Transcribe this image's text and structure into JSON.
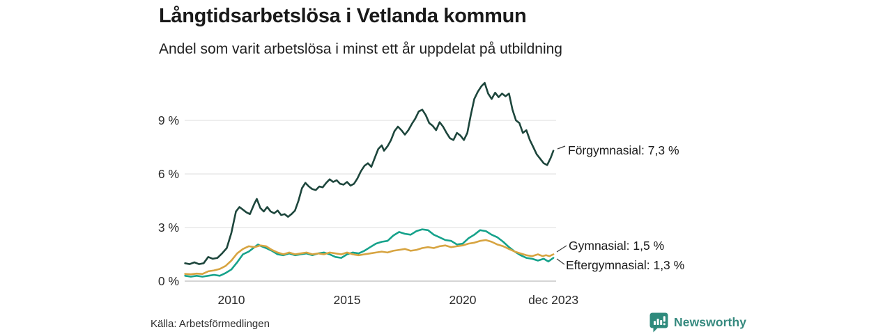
{
  "header": {
    "title": "Långtidsarbetslösa i Vetlanda kommun",
    "subtitle": "Andel som varit arbetslösa i minst ett år uppdelat på utbildning"
  },
  "footer": {
    "source": "Källa: Arbetsförmedlingen",
    "brand": "Newsworthy"
  },
  "colors": {
    "forgymnasial": "#1d463c",
    "gymnasial": "#d7a441",
    "eftergymnasial": "#16a28b",
    "grid": "#e3e3e3",
    "axis": "#c7c7c7",
    "connector": "#3a3a3a",
    "brand": "#35897e",
    "brand_icon": "#2e8a7c"
  },
  "chart_data": {
    "type": "line",
    "title": "Långtidsarbetslösa i Vetlanda kommun",
    "subtitle": "Andel som varit arbetslösa i minst ett år uppdelat på utbildning",
    "grid": true,
    "legend_position": "right-end-labels",
    "x_axis": {
      "range": [
        2008,
        2024
      ],
      "ticks": [
        {
          "label": "2010",
          "value": 2010
        },
        {
          "label": "2015",
          "value": 2015
        },
        {
          "label": "2020",
          "value": 2020
        },
        {
          "label": "dec 2023",
          "value": 2023.92
        }
      ]
    },
    "y_axis": {
      "unit": "%",
      "range": [
        0,
        11.5
      ],
      "tick_values": [
        0,
        3,
        6,
        9
      ],
      "ticks": [
        "0 %",
        "3 %",
        "6 %",
        "9 %"
      ]
    },
    "series": [
      {
        "id": "forgymnasial",
        "name": "Förgymnasial",
        "label": "Förgymnasial: 7,3 %",
        "end_value": 7.3,
        "color": "#1d463c",
        "points": [
          [
            2008.0,
            1.0
          ],
          [
            2008.2,
            0.95
          ],
          [
            2008.4,
            1.05
          ],
          [
            2008.6,
            0.95
          ],
          [
            2008.8,
            1.0
          ],
          [
            2009.0,
            1.35
          ],
          [
            2009.2,
            1.25
          ],
          [
            2009.4,
            1.3
          ],
          [
            2009.6,
            1.55
          ],
          [
            2009.8,
            1.85
          ],
          [
            2010.0,
            2.7
          ],
          [
            2010.2,
            3.9
          ],
          [
            2010.35,
            4.15
          ],
          [
            2010.5,
            4.0
          ],
          [
            2010.65,
            3.85
          ],
          [
            2010.8,
            3.75
          ],
          [
            2011.0,
            4.35
          ],
          [
            2011.1,
            4.6
          ],
          [
            2011.25,
            4.1
          ],
          [
            2011.4,
            3.9
          ],
          [
            2011.55,
            4.15
          ],
          [
            2011.7,
            3.9
          ],
          [
            2011.85,
            3.8
          ],
          [
            2012.0,
            3.95
          ],
          [
            2012.15,
            3.7
          ],
          [
            2012.3,
            3.75
          ],
          [
            2012.45,
            3.6
          ],
          [
            2012.6,
            3.75
          ],
          [
            2012.75,
            3.95
          ],
          [
            2012.9,
            4.5
          ],
          [
            2013.05,
            5.2
          ],
          [
            2013.2,
            5.5
          ],
          [
            2013.35,
            5.3
          ],
          [
            2013.5,
            5.15
          ],
          [
            2013.65,
            5.1
          ],
          [
            2013.8,
            5.3
          ],
          [
            2013.95,
            5.25
          ],
          [
            2014.1,
            5.5
          ],
          [
            2014.25,
            5.7
          ],
          [
            2014.4,
            5.55
          ],
          [
            2014.55,
            5.65
          ],
          [
            2014.7,
            5.45
          ],
          [
            2014.85,
            5.4
          ],
          [
            2015.0,
            5.55
          ],
          [
            2015.15,
            5.35
          ],
          [
            2015.3,
            5.45
          ],
          [
            2015.45,
            5.75
          ],
          [
            2015.6,
            6.15
          ],
          [
            2015.75,
            6.45
          ],
          [
            2015.9,
            6.6
          ],
          [
            2016.05,
            6.4
          ],
          [
            2016.2,
            6.9
          ],
          [
            2016.35,
            7.4
          ],
          [
            2016.5,
            7.6
          ],
          [
            2016.6,
            7.3
          ],
          [
            2016.75,
            7.55
          ],
          [
            2016.9,
            7.9
          ],
          [
            2017.05,
            8.4
          ],
          [
            2017.2,
            8.65
          ],
          [
            2017.35,
            8.45
          ],
          [
            2017.5,
            8.2
          ],
          [
            2017.65,
            8.45
          ],
          [
            2017.8,
            8.8
          ],
          [
            2017.95,
            9.1
          ],
          [
            2018.1,
            9.5
          ],
          [
            2018.25,
            9.6
          ],
          [
            2018.4,
            9.3
          ],
          [
            2018.55,
            8.85
          ],
          [
            2018.7,
            8.7
          ],
          [
            2018.85,
            8.45
          ],
          [
            2019.0,
            8.9
          ],
          [
            2019.15,
            8.65
          ],
          [
            2019.3,
            8.3
          ],
          [
            2019.45,
            8.0
          ],
          [
            2019.6,
            7.9
          ],
          [
            2019.75,
            8.3
          ],
          [
            2019.9,
            8.15
          ],
          [
            2020.05,
            7.9
          ],
          [
            2020.2,
            8.3
          ],
          [
            2020.35,
            9.3
          ],
          [
            2020.5,
            10.2
          ],
          [
            2020.65,
            10.6
          ],
          [
            2020.8,
            10.9
          ],
          [
            2020.95,
            11.1
          ],
          [
            2021.1,
            10.5
          ],
          [
            2021.25,
            10.2
          ],
          [
            2021.4,
            10.55
          ],
          [
            2021.55,
            10.3
          ],
          [
            2021.7,
            10.5
          ],
          [
            2021.85,
            10.35
          ],
          [
            2022.0,
            10.5
          ],
          [
            2022.15,
            9.6
          ],
          [
            2022.3,
            9.0
          ],
          [
            2022.45,
            8.85
          ],
          [
            2022.6,
            8.3
          ],
          [
            2022.75,
            8.45
          ],
          [
            2022.9,
            7.9
          ],
          [
            2023.05,
            7.5
          ],
          [
            2023.2,
            7.1
          ],
          [
            2023.35,
            6.85
          ],
          [
            2023.5,
            6.6
          ],
          [
            2023.65,
            6.5
          ],
          [
            2023.8,
            6.9
          ],
          [
            2023.92,
            7.3
          ]
        ]
      },
      {
        "id": "gymnasial",
        "name": "Gymnasial",
        "label": "Gymnasial: 1,5 %",
        "end_value": 1.5,
        "color": "#d7a441",
        "points": [
          [
            2008.0,
            0.4
          ],
          [
            2008.25,
            0.38
          ],
          [
            2008.5,
            0.42
          ],
          [
            2008.75,
            0.4
          ],
          [
            2009.0,
            0.55
          ],
          [
            2009.25,
            0.6
          ],
          [
            2009.5,
            0.68
          ],
          [
            2009.75,
            0.85
          ],
          [
            2010.0,
            1.15
          ],
          [
            2010.25,
            1.55
          ],
          [
            2010.5,
            1.8
          ],
          [
            2010.75,
            1.95
          ],
          [
            2011.0,
            1.9
          ],
          [
            2011.25,
            2.0
          ],
          [
            2011.5,
            1.95
          ],
          [
            2011.75,
            1.75
          ],
          [
            2012.0,
            1.6
          ],
          [
            2012.25,
            1.5
          ],
          [
            2012.5,
            1.6
          ],
          [
            2012.75,
            1.5
          ],
          [
            2013.0,
            1.55
          ],
          [
            2013.25,
            1.6
          ],
          [
            2013.5,
            1.5
          ],
          [
            2013.75,
            1.55
          ],
          [
            2014.0,
            1.5
          ],
          [
            2014.25,
            1.6
          ],
          [
            2014.5,
            1.55
          ],
          [
            2014.75,
            1.5
          ],
          [
            2015.0,
            1.6
          ],
          [
            2015.25,
            1.5
          ],
          [
            2015.5,
            1.45
          ],
          [
            2015.75,
            1.5
          ],
          [
            2016.0,
            1.55
          ],
          [
            2016.25,
            1.6
          ],
          [
            2016.5,
            1.65
          ],
          [
            2016.75,
            1.6
          ],
          [
            2017.0,
            1.7
          ],
          [
            2017.25,
            1.75
          ],
          [
            2017.5,
            1.8
          ],
          [
            2017.75,
            1.7
          ],
          [
            2018.0,
            1.75
          ],
          [
            2018.25,
            1.85
          ],
          [
            2018.5,
            1.9
          ],
          [
            2018.75,
            1.85
          ],
          [
            2019.0,
            1.95
          ],
          [
            2019.25,
            2.0
          ],
          [
            2019.5,
            1.9
          ],
          [
            2019.75,
            1.95
          ],
          [
            2020.0,
            2.0
          ],
          [
            2020.25,
            2.1
          ],
          [
            2020.5,
            2.15
          ],
          [
            2020.75,
            2.25
          ],
          [
            2021.0,
            2.3
          ],
          [
            2021.25,
            2.2
          ],
          [
            2021.5,
            2.05
          ],
          [
            2021.75,
            1.95
          ],
          [
            2022.0,
            1.8
          ],
          [
            2022.25,
            1.65
          ],
          [
            2022.5,
            1.55
          ],
          [
            2022.75,
            1.45
          ],
          [
            2023.0,
            1.4
          ],
          [
            2023.25,
            1.5
          ],
          [
            2023.45,
            1.4
          ],
          [
            2023.6,
            1.45
          ],
          [
            2023.75,
            1.4
          ],
          [
            2023.92,
            1.5
          ]
        ]
      },
      {
        "id": "eftergymnasial",
        "name": "Eftergymnasial",
        "label": "Eftergymnasial: 1,3 %",
        "end_value": 1.3,
        "color": "#16a28b",
        "points": [
          [
            2008.0,
            0.3
          ],
          [
            2008.25,
            0.25
          ],
          [
            2008.5,
            0.3
          ],
          [
            2008.75,
            0.25
          ],
          [
            2009.0,
            0.3
          ],
          [
            2009.25,
            0.35
          ],
          [
            2009.5,
            0.3
          ],
          [
            2009.75,
            0.45
          ],
          [
            2010.0,
            0.65
          ],
          [
            2010.25,
            1.05
          ],
          [
            2010.5,
            1.5
          ],
          [
            2010.75,
            1.65
          ],
          [
            2011.0,
            1.9
          ],
          [
            2011.15,
            2.05
          ],
          [
            2011.3,
            1.95
          ],
          [
            2011.5,
            1.85
          ],
          [
            2011.75,
            1.7
          ],
          [
            2012.0,
            1.5
          ],
          [
            2012.25,
            1.45
          ],
          [
            2012.5,
            1.55
          ],
          [
            2012.75,
            1.45
          ],
          [
            2013.0,
            1.5
          ],
          [
            2013.25,
            1.55
          ],
          [
            2013.5,
            1.45
          ],
          [
            2013.75,
            1.55
          ],
          [
            2014.0,
            1.6
          ],
          [
            2014.25,
            1.5
          ],
          [
            2014.5,
            1.35
          ],
          [
            2014.75,
            1.3
          ],
          [
            2015.0,
            1.5
          ],
          [
            2015.25,
            1.6
          ],
          [
            2015.5,
            1.55
          ],
          [
            2015.75,
            1.7
          ],
          [
            2016.0,
            1.9
          ],
          [
            2016.25,
            2.1
          ],
          [
            2016.5,
            2.2
          ],
          [
            2016.75,
            2.25
          ],
          [
            2017.0,
            2.55
          ],
          [
            2017.25,
            2.75
          ],
          [
            2017.5,
            2.65
          ],
          [
            2017.75,
            2.6
          ],
          [
            2018.0,
            2.8
          ],
          [
            2018.25,
            2.9
          ],
          [
            2018.5,
            2.85
          ],
          [
            2018.75,
            2.6
          ],
          [
            2019.0,
            2.45
          ],
          [
            2019.25,
            2.3
          ],
          [
            2019.5,
            2.25
          ],
          [
            2019.75,
            2.05
          ],
          [
            2020.0,
            2.1
          ],
          [
            2020.25,
            2.4
          ],
          [
            2020.5,
            2.6
          ],
          [
            2020.75,
            2.85
          ],
          [
            2021.0,
            2.8
          ],
          [
            2021.25,
            2.6
          ],
          [
            2021.5,
            2.45
          ],
          [
            2021.75,
            2.2
          ],
          [
            2022.0,
            1.9
          ],
          [
            2022.25,
            1.65
          ],
          [
            2022.5,
            1.45
          ],
          [
            2022.75,
            1.3
          ],
          [
            2023.0,
            1.25
          ],
          [
            2023.25,
            1.15
          ],
          [
            2023.5,
            1.25
          ],
          [
            2023.7,
            1.1
          ],
          [
            2023.92,
            1.3
          ]
        ]
      }
    ]
  }
}
